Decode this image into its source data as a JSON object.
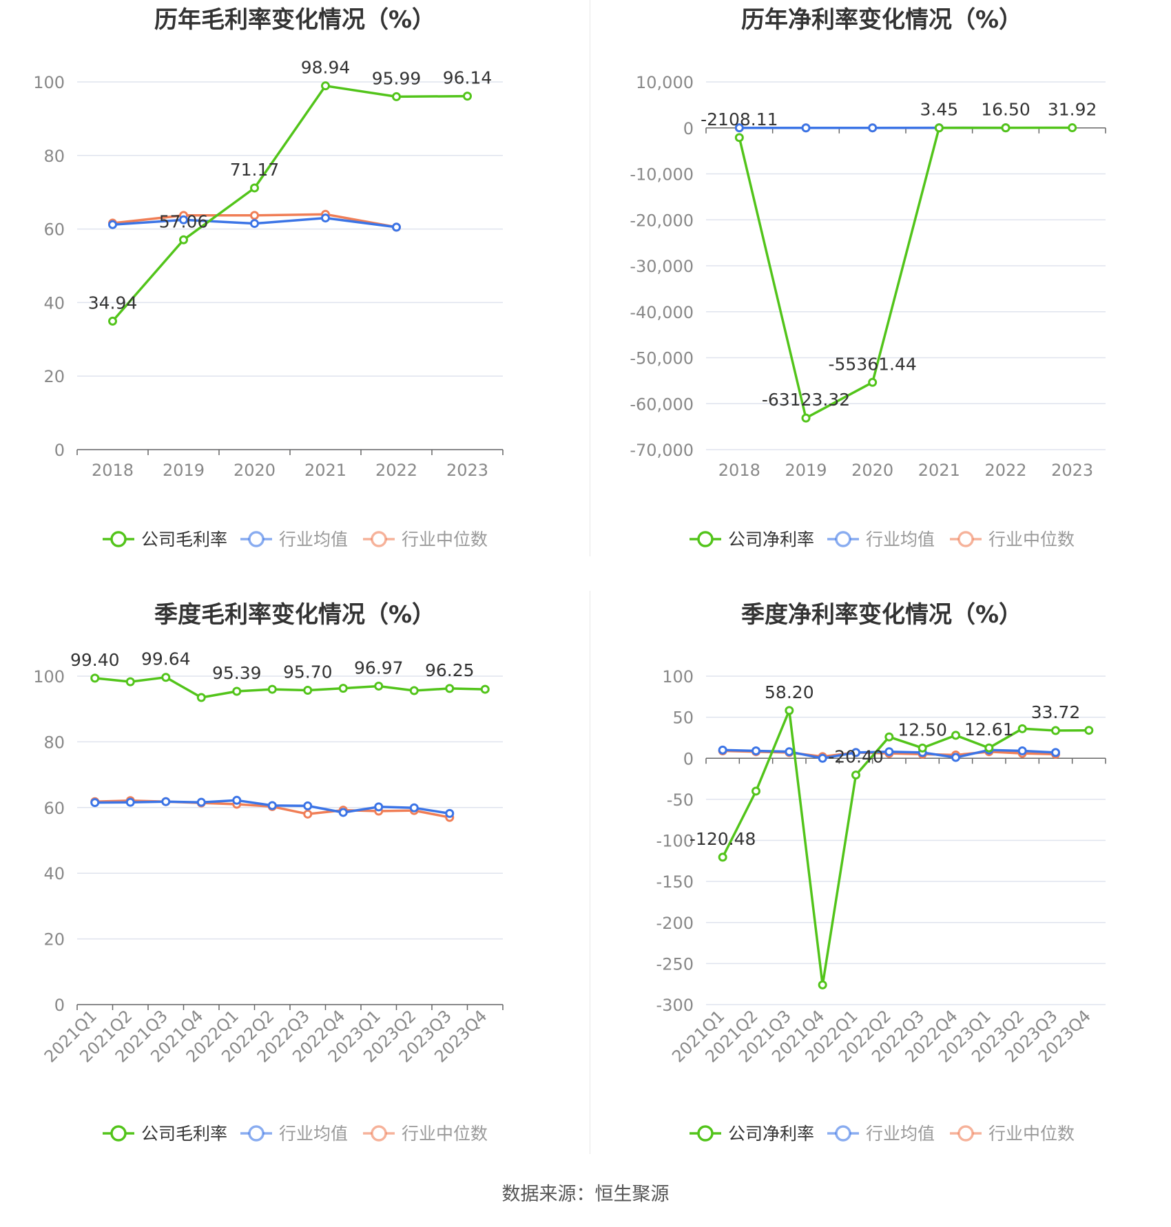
{
  "source": "数据来源：恒生聚源",
  "colors": {
    "company": "#52c41a",
    "avg": "#3b74e6",
    "median": "#f07e56",
    "grid": "#dfe3ee",
    "axis": "#666666",
    "label": "#333333",
    "tick": "#888888"
  },
  "chart_data": [
    {
      "type": "line",
      "title": "历年毛利率变化情况（%）",
      "categories": [
        "2018",
        "2019",
        "2020",
        "2021",
        "2022",
        "2023"
      ],
      "ylim": [
        0,
        100
      ],
      "yticks": [
        0,
        20,
        40,
        60,
        80,
        100
      ],
      "ytick_labels": [
        "0",
        "20",
        "40",
        "60",
        "80",
        "100"
      ],
      "series": [
        {
          "name": "公司毛利率",
          "key": "company",
          "values": [
            34.94,
            57.06,
            71.17,
            98.94,
            95.99,
            96.14
          ],
          "labels": [
            "34.94",
            "57.06",
            "71.17",
            "98.94",
            "95.99",
            "96.14"
          ]
        },
        {
          "name": "行业均值",
          "key": "avg",
          "values": [
            61.2,
            62.5,
            61.5,
            63.0,
            60.5,
            null
          ]
        },
        {
          "name": "行业中位数",
          "key": "median",
          "values": [
            61.6,
            63.7,
            63.7,
            64.0,
            60.5,
            null
          ]
        }
      ],
      "legend": "bottom"
    },
    {
      "type": "line",
      "title": "历年净利率变化情况（%）",
      "categories": [
        "2018",
        "2019",
        "2020",
        "2021",
        "2022",
        "2023"
      ],
      "ylim": [
        -70000,
        10000
      ],
      "yticks": [
        -70000,
        -60000,
        -50000,
        -40000,
        -30000,
        -20000,
        -10000,
        0,
        10000
      ],
      "ytick_labels": [
        "-70,000",
        "-60,000",
        "-50,000",
        "-40,000",
        "-30,000",
        "-20,000",
        "-10,000",
        "0",
        "10,000"
      ],
      "series": [
        {
          "name": "公司净利率",
          "key": "company",
          "values": [
            -2108.11,
            -63123.32,
            -55361.44,
            3.45,
            16.5,
            31.92
          ],
          "labels": [
            "-2108.11",
            "-63123.32",
            "-55361.44",
            "3.45",
            "16.50",
            "31.92"
          ]
        },
        {
          "name": "行业均值",
          "key": "avg",
          "values": [
            10,
            5,
            8,
            15,
            12,
            null
          ]
        },
        {
          "name": "行业中位数",
          "key": "median",
          "values": [
            9,
            7,
            7,
            12,
            10,
            null
          ]
        }
      ],
      "legend": "bottom"
    },
    {
      "type": "line",
      "title": "季度毛利率变化情况（%）",
      "categories": [
        "2021Q1",
        "2021Q2",
        "2021Q3",
        "2021Q4",
        "2022Q1",
        "2022Q2",
        "2022Q3",
        "2022Q4",
        "2023Q1",
        "2023Q2",
        "2023Q3",
        "2023Q4"
      ],
      "ylim": [
        0,
        100
      ],
      "yticks": [
        0,
        20,
        40,
        60,
        80,
        100
      ],
      "ytick_labels": [
        "0",
        "20",
        "40",
        "60",
        "80",
        "100"
      ],
      "series": [
        {
          "name": "公司毛利率",
          "key": "company",
          "values": [
            99.4,
            98.3,
            99.64,
            93.5,
            95.39,
            96.0,
            95.7,
            96.3,
            96.97,
            95.6,
            96.25,
            96.0
          ],
          "labels": [
            "99.40",
            "",
            "99.64",
            "",
            "95.39",
            "",
            "95.70",
            "",
            "96.97",
            "",
            "96.25",
            ""
          ]
        },
        {
          "name": "行业均值",
          "key": "avg",
          "values": [
            61.5,
            61.6,
            61.8,
            61.6,
            62.2,
            60.6,
            60.5,
            58.5,
            60.2,
            59.9,
            58.2,
            null
          ]
        },
        {
          "name": "行业中位数",
          "key": "median",
          "values": [
            61.8,
            62.1,
            61.8,
            61.4,
            61.0,
            60.3,
            58.0,
            59.2,
            58.9,
            59.1,
            57.0,
            null
          ]
        }
      ],
      "legend": "bottom"
    },
    {
      "type": "line",
      "title": "季度净利率变化情况（%）",
      "categories": [
        "2021Q1",
        "2021Q2",
        "2021Q3",
        "2021Q4",
        "2022Q1",
        "2022Q2",
        "2022Q3",
        "2022Q4",
        "2023Q1",
        "2023Q2",
        "2023Q3",
        "2023Q4"
      ],
      "ylim": [
        -300,
        100
      ],
      "yticks": [
        -300,
        -250,
        -200,
        -150,
        -100,
        -50,
        0,
        50,
        100
      ],
      "ytick_labels": [
        "-300",
        "-250",
        "-200",
        "-150",
        "-100",
        "-50",
        "0",
        "50",
        "100"
      ],
      "series": [
        {
          "name": "公司净利率",
          "key": "company",
          "values": [
            -120.48,
            -40,
            58.2,
            -276,
            -20.4,
            26,
            12.5,
            28,
            12.61,
            36,
            33.72,
            34
          ],
          "labels": [
            "-120.48",
            "",
            "58.20",
            "",
            "-20.40",
            "",
            "12.50",
            "",
            "12.61",
            "",
            "33.72",
            ""
          ]
        },
        {
          "name": "行业均值",
          "key": "avg",
          "values": [
            10,
            9,
            8,
            0,
            7,
            8,
            7,
            1,
            10,
            9,
            7,
            null
          ]
        },
        {
          "name": "行业中位数",
          "key": "median",
          "values": [
            9,
            8,
            7,
            2,
            7,
            6,
            5,
            4,
            8,
            6,
            5,
            null
          ]
        }
      ],
      "legend": "bottom"
    }
  ]
}
